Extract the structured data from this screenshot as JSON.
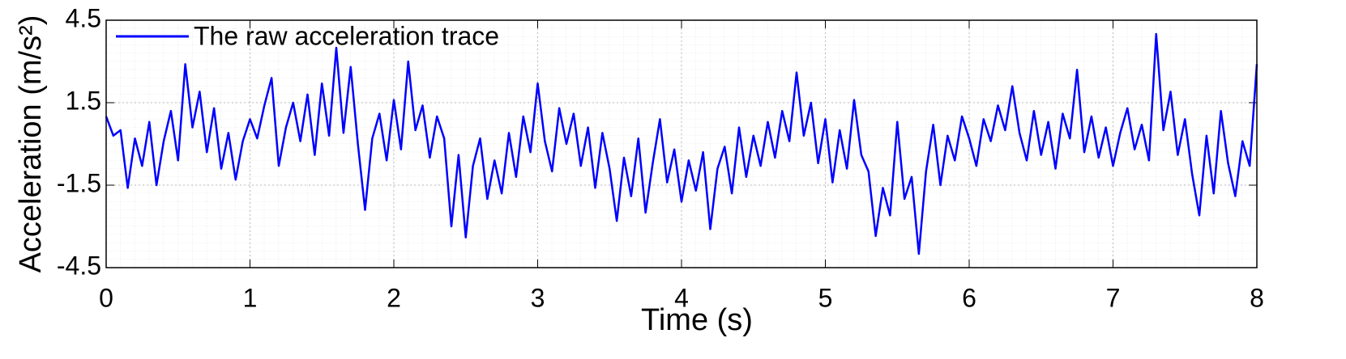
{
  "chart_data": {
    "type": "line",
    "xlabel": "Time (s)",
    "ylabel": "Acceleration (m/s²)",
    "x": [
      0,
      0.05,
      0.1,
      0.15,
      0.2,
      0.25,
      0.3,
      0.35,
      0.4,
      0.45,
      0.5,
      0.55,
      0.6,
      0.65,
      0.7,
      0.75,
      0.8,
      0.85,
      0.9,
      0.95,
      1,
      1.05,
      1.1,
      1.15,
      1.2,
      1.25,
      1.3,
      1.35,
      1.4,
      1.45,
      1.5,
      1.55,
      1.6,
      1.65,
      1.7,
      1.75,
      1.8,
      1.85,
      1.9,
      1.95,
      2,
      2.05,
      2.1,
      2.15,
      2.2,
      2.25,
      2.3,
      2.35,
      2.4,
      2.45,
      2.5,
      2.55,
      2.6,
      2.65,
      2.7,
      2.75,
      2.8,
      2.85,
      2.9,
      2.95,
      3,
      3.05,
      3.1,
      3.15,
      3.2,
      3.25,
      3.3,
      3.35,
      3.4,
      3.45,
      3.5,
      3.55,
      3.6,
      3.65,
      3.7,
      3.75,
      3.8,
      3.85,
      3.9,
      3.95,
      4,
      4.05,
      4.1,
      4.15,
      4.2,
      4.25,
      4.3,
      4.35,
      4.4,
      4.45,
      4.5,
      4.55,
      4.6,
      4.65,
      4.7,
      4.75,
      4.8,
      4.85,
      4.9,
      4.95,
      5,
      5.05,
      5.1,
      5.15,
      5.2,
      5.25,
      5.3,
      5.35,
      5.4,
      5.45,
      5.5,
      5.55,
      5.6,
      5.65,
      5.7,
      5.75,
      5.8,
      5.85,
      5.9,
      5.95,
      6,
      6.05,
      6.1,
      6.15,
      6.2,
      6.25,
      6.3,
      6.35,
      6.4,
      6.45,
      6.5,
      6.55,
      6.6,
      6.65,
      6.7,
      6.75,
      6.8,
      6.85,
      6.9,
      6.95,
      7,
      7.05,
      7.1,
      7.15,
      7.2,
      7.25,
      7.3,
      7.35,
      7.4,
      7.45,
      7.5,
      7.55,
      7.6,
      7.65,
      7.7,
      7.75,
      7.8,
      7.85,
      7.9,
      7.95,
      8
    ],
    "series": [
      {
        "name": "The raw acceleration trace",
        "color": "#0000ff",
        "values": [
          1.0,
          0.3,
          0.5,
          -1.6,
          0.2,
          -0.8,
          0.8,
          -1.5,
          0.1,
          1.2,
          -0.6,
          2.9,
          0.6,
          1.9,
          -0.3,
          1.3,
          -0.9,
          0.4,
          -1.3,
          0.1,
          0.9,
          0.2,
          1.4,
          2.4,
          -0.8,
          0.6,
          1.5,
          0.1,
          1.8,
          -0.4,
          2.2,
          0.3,
          3.5,
          0.4,
          2.8,
          0.0,
          -2.4,
          0.2,
          1.1,
          -0.6,
          1.6,
          -0.2,
          3.0,
          0.5,
          1.4,
          -0.5,
          1.0,
          0.2,
          -3.0,
          -0.4,
          -3.4,
          -0.8,
          0.2,
          -2.0,
          -0.6,
          -1.8,
          0.4,
          -1.2,
          1.0,
          -0.3,
          2.2,
          0.1,
          -1.0,
          1.3,
          0.0,
          1.1,
          -0.8,
          0.6,
          -1.6,
          0.4,
          -0.9,
          -2.8,
          -0.5,
          -1.9,
          0.2,
          -2.5,
          -0.7,
          0.9,
          -1.4,
          -0.2,
          -2.1,
          -0.6,
          -1.7,
          -0.3,
          -3.1,
          -0.9,
          -0.1,
          -1.8,
          0.6,
          -1.2,
          0.3,
          -0.8,
          0.8,
          -0.5,
          1.2,
          0.1,
          2.6,
          0.3,
          1.5,
          -0.7,
          0.9,
          -1.4,
          0.5,
          -0.9,
          1.6,
          -0.4,
          -1.0,
          -3.35,
          -1.6,
          -2.6,
          0.8,
          -2.0,
          -1.2,
          -4.0,
          -1.0,
          0.7,
          -1.5,
          0.3,
          -0.6,
          1.0,
          0.2,
          -0.8,
          0.9,
          0.1,
          1.4,
          0.5,
          2.1,
          0.4,
          -0.6,
          1.2,
          -0.4,
          0.8,
          -0.9,
          1.1,
          0.2,
          2.7,
          -0.3,
          1.0,
          -0.5,
          0.6,
          -0.8,
          0.4,
          1.3,
          -0.2,
          0.7,
          -0.6,
          4.0,
          0.5,
          1.9,
          -0.4,
          0.9,
          -1.1,
          -2.6,
          0.3,
          -1.8,
          1.2,
          -0.7,
          -1.9,
          0.1,
          -0.8,
          2.9
        ]
      }
    ],
    "xlim": [
      0,
      8
    ],
    "xticks": [
      0,
      1,
      2,
      3,
      4,
      5,
      6,
      7,
      8
    ],
    "ylim": [
      -4.5,
      4.5
    ],
    "yticks": [
      -4.5,
      -1.5,
      1.5,
      4.5
    ],
    "grid": true,
    "legend": "upper left"
  }
}
